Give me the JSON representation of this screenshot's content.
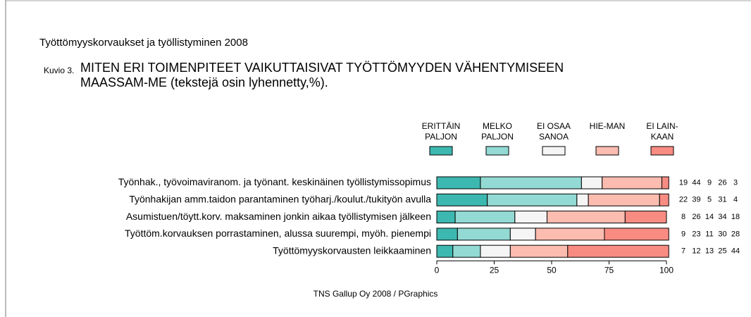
{
  "header": "Työttömyyskorvaukset ja työllistyminen 2008",
  "figure_label": "Kuvio 3.",
  "source": "TNS Gallup Oy 2008 / PGraphics",
  "chart_data": {
    "type": "stacked_barh",
    "title": "MITEN ERI TOIMENPITEET VAIKUTTAISIVAT TYÖTTÖMYYDEN VÄHENTYMISEEN MAASSAM-ME (tekstejä osin lyhennetty,%).",
    "categories": [
      "Työnhak., työvoimaviranom. ja työnant. keskinäinen työllistymissopimus",
      "Työnhakijan amm.taidon parantaminen työharj./koulut./tukityön avulla",
      "Asumistuen/töytt.korv. maksaminen jonkin aikaa työllistymisen jälkeen",
      "Työttöm.korvauksen porrastaminen, alussa suurempi, myöh. pienempi",
      "Työttömyyskorvausten leikkaaminen"
    ],
    "series": [
      {
        "name": "ERITTÄIN PALJON",
        "color": "#3db8b0",
        "values": [
          19,
          22,
          8,
          9,
          7
        ]
      },
      {
        "name": "MELKO PALJON",
        "color": "#93dad4",
        "values": [
          44,
          39,
          26,
          23,
          12
        ]
      },
      {
        "name": "EI OSAA SANOA",
        "color": "#f5f5f5",
        "values": [
          9,
          5,
          14,
          11,
          13
        ]
      },
      {
        "name": "HIE-MAN",
        "color": "#fdbcb0",
        "values": [
          26,
          31,
          34,
          30,
          25
        ]
      },
      {
        "name": "EI LAIN-KAAN",
        "color": "#f98c82",
        "values": [
          3,
          4,
          18,
          28,
          44
        ]
      }
    ],
    "xlim": [
      0,
      100
    ],
    "xticks": [
      0,
      25,
      50,
      75,
      100
    ]
  }
}
